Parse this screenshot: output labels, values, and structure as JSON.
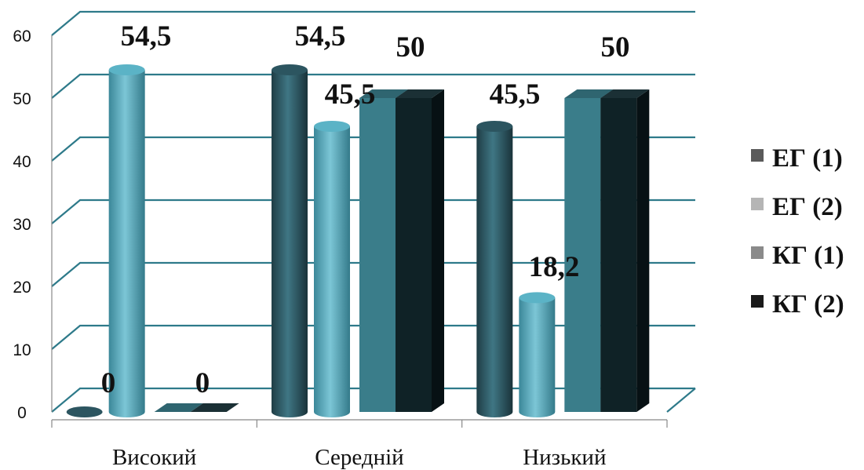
{
  "chart_data": {
    "type": "bar",
    "categories": [
      "Високий",
      "Середній",
      "Низький"
    ],
    "series": [
      {
        "name": "ЕГ (1)",
        "values": [
          0,
          54.5,
          45.5
        ],
        "labels": [
          "0",
          "54,5",
          "45,5"
        ],
        "color": "#2e5a66",
        "legend_color": "#5a5a5a",
        "shape": "cylinder"
      },
      {
        "name": "ЕГ (2)",
        "values": [
          54.5,
          45.5,
          18.2
        ],
        "labels": [
          "54,5",
          "45,5",
          "18,2"
        ],
        "color": "#4aa3b8",
        "legend_color": "#b5b5b5",
        "shape": "cylinder"
      },
      {
        "name": "КГ (1)",
        "values": [
          0,
          50,
          50
        ],
        "labels": [
          "0",
          "50",
          "50"
        ],
        "color": "#3a7d8a",
        "legend_color": "#8a8a8a",
        "shape": "box"
      },
      {
        "name": "КГ (2)",
        "values": [
          0,
          50,
          50
        ],
        "labels": [
          "",
          "",
          ""
        ],
        "color": "#0f2226",
        "legend_color": "#1a1a1a",
        "shape": "box"
      }
    ],
    "y_ticks": [
      "0",
      "10",
      "20",
      "30",
      "40",
      "50",
      "60"
    ],
    "ylim": [
      0,
      60
    ],
    "grid": true,
    "legend_position": "right",
    "gridline_color": "#2e7a8a"
  }
}
